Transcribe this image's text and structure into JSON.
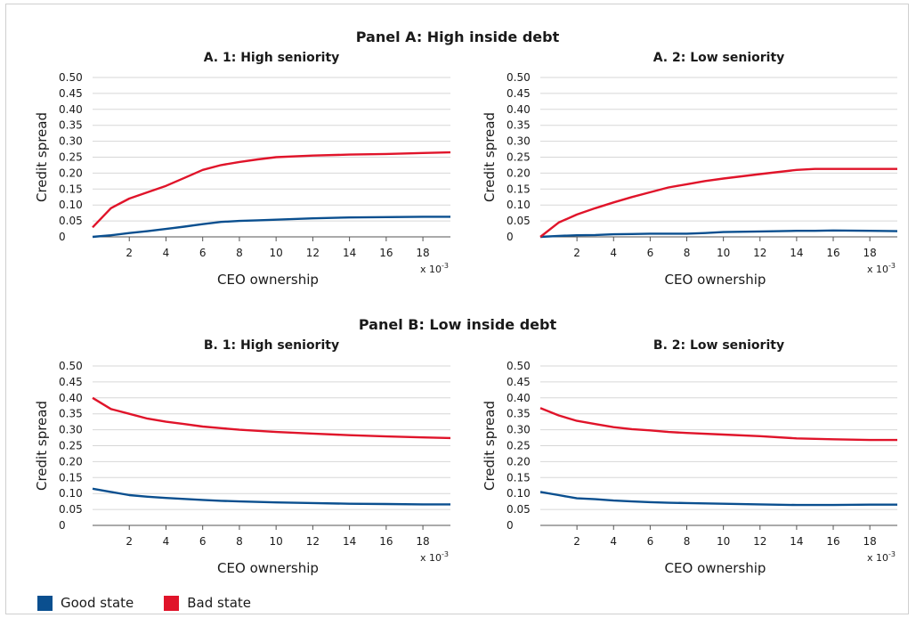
{
  "colors": {
    "good": "#0a4f8f",
    "bad": "#e0142a",
    "grid": "#d7d7d7",
    "axis": "#555555"
  },
  "legend": {
    "good_label": "Good state",
    "bad_label": "Bad state"
  },
  "panel_a_title": "Panel A: High inside debt",
  "panel_b_title": "Panel B: Low inside debt",
  "chart_data": [
    {
      "type": "line",
      "title": "A. 1: High seniority",
      "xlabel": "CEO ownership",
      "ylabel": "Credit spread",
      "x_multiplier": "x 10",
      "x_multiplier_exp": "-3",
      "xlim": [
        0,
        19.5
      ],
      "ylim": [
        0,
        0.5
      ],
      "x_ticks": [
        2,
        4,
        6,
        8,
        10,
        12,
        14,
        16,
        18
      ],
      "y_ticks": [
        0,
        0.05,
        0.1,
        0.15,
        0.2,
        0.25,
        0.3,
        0.35,
        0.4,
        0.45,
        0.5
      ],
      "y_tick_labels": [
        "0",
        "0.05",
        "0.10",
        "0.15",
        "0.20",
        "0.25",
        "0.30",
        "0.35",
        "0.40",
        "0.45",
        "0.50"
      ],
      "grid": "horizontal",
      "x": [
        0,
        1,
        2,
        3,
        4,
        5,
        6,
        7,
        8,
        9,
        10,
        12,
        14,
        16,
        18,
        19.5
      ],
      "series": [
        {
          "name": "Good state",
          "values": [
            0.0,
            0.005,
            0.012,
            0.018,
            0.025,
            0.032,
            0.04,
            0.047,
            0.05,
            0.052,
            0.054,
            0.058,
            0.061,
            0.062,
            0.063,
            0.063
          ]
        },
        {
          "name": "Bad state",
          "values": [
            0.03,
            0.09,
            0.12,
            0.14,
            0.16,
            0.185,
            0.21,
            0.225,
            0.235,
            0.243,
            0.25,
            0.255,
            0.258,
            0.26,
            0.263,
            0.265
          ]
        }
      ]
    },
    {
      "type": "line",
      "title": "A. 2: Low seniority",
      "xlabel": "CEO ownership",
      "ylabel": "Credit spread",
      "x_multiplier": "x 10",
      "x_multiplier_exp": "-3",
      "xlim": [
        0,
        19.5
      ],
      "ylim": [
        0,
        0.5
      ],
      "x_ticks": [
        2,
        4,
        6,
        8,
        10,
        12,
        14,
        16,
        18
      ],
      "y_ticks": [
        0,
        0.05,
        0.1,
        0.15,
        0.2,
        0.25,
        0.3,
        0.35,
        0.4,
        0.45,
        0.5
      ],
      "y_tick_labels": [
        "0",
        "0.05",
        "0.10",
        "0.15",
        "0.20",
        "0.25",
        "0.30",
        "0.35",
        "0.40",
        "0.45",
        "0.50"
      ],
      "grid": "horizontal",
      "x": [
        0,
        1,
        2,
        3,
        4,
        5,
        6,
        7,
        8,
        9,
        10,
        12,
        14,
        15,
        16,
        18,
        19.5
      ],
      "series": [
        {
          "name": "Good state",
          "values": [
            0.0,
            0.003,
            0.005,
            0.006,
            0.008,
            0.009,
            0.01,
            0.01,
            0.01,
            0.012,
            0.015,
            0.017,
            0.019,
            0.019,
            0.02,
            0.019,
            0.018
          ]
        },
        {
          "name": "Bad state",
          "values": [
            0.0,
            0.045,
            0.07,
            0.09,
            0.108,
            0.125,
            0.14,
            0.155,
            0.165,
            0.175,
            0.183,
            0.197,
            0.21,
            0.213,
            0.213,
            0.213,
            0.213
          ]
        }
      ]
    },
    {
      "type": "line",
      "title": "B. 1: High seniority",
      "xlabel": "CEO ownership",
      "ylabel": "Credit spread",
      "x_multiplier": "x 10",
      "x_multiplier_exp": "-3",
      "xlim": [
        0,
        19.5
      ],
      "ylim": [
        0,
        0.5
      ],
      "x_ticks": [
        2,
        4,
        6,
        8,
        10,
        12,
        14,
        16,
        18
      ],
      "y_ticks": [
        0,
        0.05,
        0.1,
        0.15,
        0.2,
        0.25,
        0.3,
        0.35,
        0.4,
        0.45,
        0.5
      ],
      "y_tick_labels": [
        "0",
        "0.05",
        "0.10",
        "0.15",
        "0.20",
        "0.25",
        "0.30",
        "0.35",
        "0.40",
        "0.45",
        "0.50"
      ],
      "grid": "horizontal",
      "x": [
        0,
        1,
        2,
        3,
        4,
        5,
        6,
        7,
        8,
        10,
        12,
        14,
        16,
        18,
        19.5
      ],
      "series": [
        {
          "name": "Good state",
          "values": [
            0.115,
            0.105,
            0.095,
            0.09,
            0.086,
            0.083,
            0.08,
            0.077,
            0.075,
            0.072,
            0.07,
            0.068,
            0.067,
            0.066,
            0.066
          ]
        },
        {
          "name": "Bad state",
          "values": [
            0.4,
            0.365,
            0.35,
            0.335,
            0.325,
            0.318,
            0.31,
            0.305,
            0.3,
            0.293,
            0.288,
            0.283,
            0.279,
            0.276,
            0.274
          ]
        }
      ]
    },
    {
      "type": "line",
      "title": "B. 2: Low seniority",
      "xlabel": "CEO ownership",
      "ylabel": "Credit spread",
      "x_multiplier": "x 10",
      "x_multiplier_exp": "-3",
      "xlim": [
        0,
        19.5
      ],
      "ylim": [
        0,
        0.5
      ],
      "x_ticks": [
        2,
        4,
        6,
        8,
        10,
        12,
        14,
        16,
        18
      ],
      "y_ticks": [
        0,
        0.05,
        0.1,
        0.15,
        0.2,
        0.25,
        0.3,
        0.35,
        0.4,
        0.45,
        0.5
      ],
      "y_tick_labels": [
        "0",
        "0.05",
        "0.10",
        "0.15",
        "0.20",
        "0.25",
        "0.30",
        "0.35",
        "0.40",
        "0.45",
        "0.50"
      ],
      "grid": "horizontal",
      "x": [
        0,
        1,
        2,
        3,
        4,
        5,
        6,
        7,
        8,
        10,
        12,
        14,
        16,
        18,
        19.5
      ],
      "series": [
        {
          "name": "Good state",
          "values": [
            0.105,
            0.095,
            0.085,
            0.082,
            0.078,
            0.075,
            0.073,
            0.071,
            0.07,
            0.068,
            0.066,
            0.064,
            0.064,
            0.065,
            0.065
          ]
        },
        {
          "name": "Bad state",
          "values": [
            0.368,
            0.345,
            0.328,
            0.318,
            0.308,
            0.302,
            0.298,
            0.293,
            0.29,
            0.285,
            0.28,
            0.273,
            0.27,
            0.268,
            0.268
          ]
        }
      ]
    }
  ]
}
